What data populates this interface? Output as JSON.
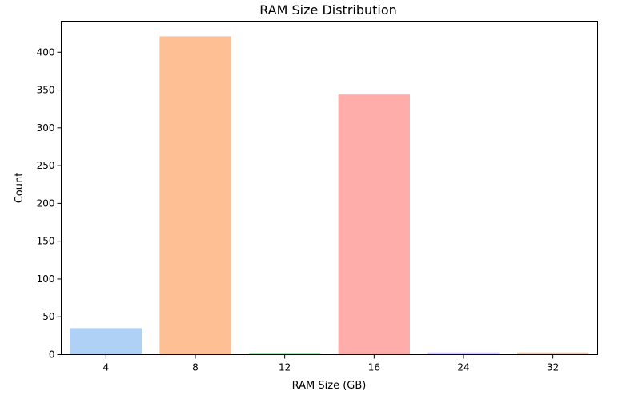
{
  "chart_data": {
    "type": "bar",
    "title": "RAM Size Distribution",
    "xlabel": "RAM Size (GB)",
    "ylabel": "Count",
    "categories": [
      "4",
      "8",
      "12",
      "16",
      "24",
      "32"
    ],
    "values": [
      35,
      421,
      2,
      344,
      3,
      3
    ],
    "colors": [
      "#a1c9f4",
      "#ffb482",
      "#8de5a1",
      "#ff9f9b",
      "#d0bbff",
      "#debb9b"
    ],
    "bar_opacity": 0.85,
    "ylim": [
      0,
      441
    ],
    "yticks": [
      0,
      50,
      100,
      150,
      200,
      250,
      300,
      350,
      400
    ],
    "grid": false,
    "legend": "none"
  }
}
